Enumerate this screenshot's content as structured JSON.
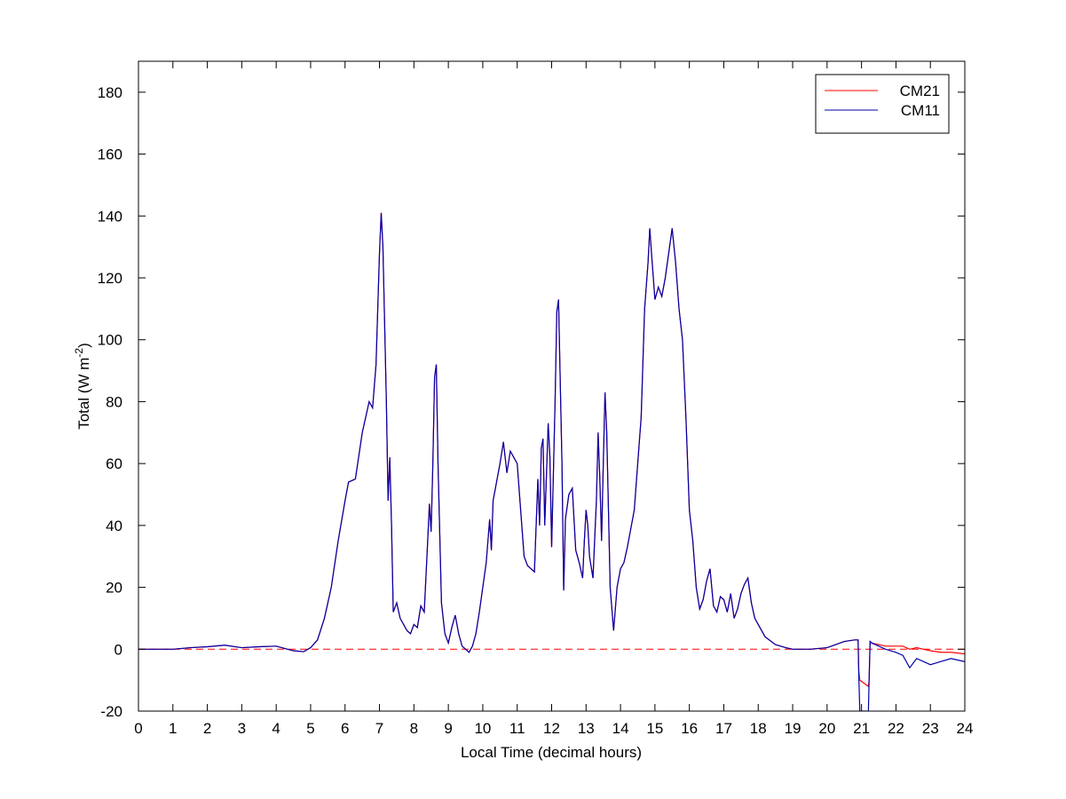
{
  "chart_data": {
    "type": "line",
    "xlabel": "Local Time (decimal hours)",
    "ylabel": "Total (W m",
    "ylabel_sup": "-2",
    "ylabel_end": ")",
    "xlim": [
      0,
      24
    ],
    "ylim": [
      -20,
      190
    ],
    "xticks": [
      0,
      1,
      2,
      3,
      4,
      5,
      6,
      7,
      8,
      9,
      10,
      11,
      12,
      13,
      14,
      15,
      16,
      17,
      18,
      19,
      20,
      21,
      22,
      23,
      24
    ],
    "yticks": [
      -20,
      0,
      20,
      40,
      60,
      80,
      100,
      120,
      140,
      160,
      180
    ],
    "legend": "upper right",
    "hline": {
      "value": 0,
      "color": "#ff0000",
      "style": "dashed"
    },
    "x": [
      0,
      0.5,
      1,
      1.5,
      2,
      2.5,
      3,
      3.5,
      4,
      4.5,
      4.8,
      5,
      5.2,
      5.4,
      5.6,
      5.8,
      6,
      6.1,
      6.3,
      6.5,
      6.6,
      6.7,
      6.8,
      6.9,
      7,
      7.05,
      7.1,
      7.2,
      7.25,
      7.3,
      7.35,
      7.4,
      7.5,
      7.6,
      7.8,
      7.9,
      8,
      8.1,
      8.2,
      8.3,
      8.4,
      8.45,
      8.5,
      8.55,
      8.6,
      8.65,
      8.7,
      8.8,
      8.9,
      9,
      9.1,
      9.2,
      9.3,
      9.4,
      9.5,
      9.6,
      9.7,
      9.8,
      9.9,
      10,
      10.1,
      10.2,
      10.25,
      10.3,
      10.5,
      10.6,
      10.7,
      10.8,
      10.9,
      11,
      11.1,
      11.2,
      11.3,
      11.5,
      11.6,
      11.65,
      11.7,
      11.75,
      11.8,
      11.9,
      11.95,
      12,
      12.1,
      12.15,
      12.2,
      12.3,
      12.35,
      12.4,
      12.5,
      12.6,
      12.7,
      12.8,
      12.9,
      12.95,
      13,
      13.05,
      13.1,
      13.2,
      13.3,
      13.35,
      13.4,
      13.45,
      13.5,
      13.55,
      13.6,
      13.7,
      13.8,
      13.9,
      14,
      14.1,
      14.2,
      14.4,
      14.6,
      14.7,
      14.8,
      14.85,
      14.9,
      15,
      15.1,
      15.2,
      15.3,
      15.4,
      15.5,
      15.6,
      15.7,
      15.8,
      15.9,
      16,
      16.1,
      16.2,
      16.3,
      16.4,
      16.5,
      16.6,
      16.7,
      16.8,
      16.9,
      17,
      17.1,
      17.2,
      17.3,
      17.4,
      17.5,
      17.6,
      17.7,
      17.8,
      17.9,
      18,
      18.2,
      18.5,
      18.8,
      19,
      19.5,
      20,
      20.5,
      20.8,
      20.9,
      20.92,
      20.95,
      21.2,
      21.22,
      21.25,
      21.3,
      21.5,
      21.7,
      22,
      22.2,
      22.4,
      22.6,
      22.8,
      23,
      23.3,
      23.6,
      24
    ],
    "series": [
      {
        "name": "CM21",
        "color": "#ff0000",
        "values": [
          0,
          0,
          0,
          0.5,
          0.8,
          1.3,
          0.5,
          0.8,
          1,
          -0.5,
          -0.8,
          0.5,
          3,
          10,
          20,
          35,
          48,
          54,
          55,
          70,
          75,
          80,
          78,
          92,
          128,
          141,
          130,
          80,
          48,
          62,
          40,
          12,
          15,
          10,
          6,
          5,
          8,
          7,
          14,
          12,
          35,
          47,
          38,
          60,
          88,
          92,
          60,
          15,
          5,
          2,
          7,
          11,
          5,
          1,
          0,
          -1,
          1,
          5,
          12,
          20,
          28,
          42,
          32,
          48,
          60,
          67,
          57,
          64,
          62,
          60,
          45,
          30,
          27,
          25,
          55,
          40,
          65,
          68,
          40,
          73,
          62,
          33,
          80,
          109,
          113,
          60,
          19,
          42,
          50,
          52,
          32,
          28,
          23,
          35,
          45,
          40,
          30,
          23,
          48,
          70,
          55,
          35,
          60,
          83,
          70,
          20,
          6,
          20,
          26,
          28,
          33,
          45,
          75,
          110,
          125,
          136,
          128,
          113,
          117,
          114,
          120,
          128,
          136,
          125,
          110,
          100,
          75,
          45,
          35,
          20,
          13,
          16,
          22,
          26,
          14,
          12,
          17,
          16,
          12,
          18,
          10,
          13,
          18,
          21,
          23,
          15,
          10,
          8,
          4,
          1.5,
          0.5,
          0,
          0,
          0.5,
          2.5,
          3,
          3,
          -7,
          -10,
          -12,
          -10,
          2.5,
          2,
          1.5,
          1,
          1,
          1,
          0,
          0.5,
          0,
          -0.5,
          -1,
          -1,
          -1.5
        ]
      },
      {
        "name": "CM11",
        "color": "#0000aa",
        "values": [
          0,
          0,
          0,
          0.5,
          0.8,
          1.3,
          0.5,
          0.8,
          1,
          -0.5,
          -0.8,
          0.5,
          3,
          10,
          20,
          35,
          48,
          54,
          55,
          70,
          75,
          80,
          78,
          92,
          128,
          141,
          130,
          80,
          48,
          62,
          40,
          12,
          15,
          10,
          6,
          5,
          8,
          7,
          14,
          12,
          35,
          47,
          38,
          60,
          88,
          92,
          60,
          15,
          5,
          2,
          7,
          11,
          5,
          1,
          0,
          -1,
          1,
          5,
          12,
          20,
          28,
          42,
          32,
          48,
          60,
          67,
          57,
          64,
          62,
          60,
          45,
          30,
          27,
          25,
          55,
          40,
          65,
          68,
          40,
          73,
          62,
          33,
          80,
          109,
          113,
          60,
          19,
          42,
          50,
          52,
          32,
          28,
          23,
          35,
          45,
          40,
          30,
          23,
          48,
          70,
          55,
          35,
          60,
          83,
          70,
          20,
          6,
          20,
          26,
          28,
          33,
          45,
          75,
          110,
          125,
          136,
          128,
          113,
          117,
          114,
          120,
          128,
          136,
          125,
          110,
          100,
          75,
          45,
          35,
          20,
          13,
          16,
          22,
          26,
          14,
          12,
          17,
          16,
          12,
          18,
          10,
          13,
          18,
          21,
          23,
          15,
          10,
          8,
          4,
          1.5,
          0.5,
          0,
          0,
          0.5,
          2.5,
          3,
          3,
          -8,
          -20,
          -20,
          -10,
          2.5,
          2,
          1,
          0,
          -1,
          -2,
          -6,
          -3,
          -4,
          -5,
          -4,
          -3,
          -4
        ]
      }
    ]
  }
}
